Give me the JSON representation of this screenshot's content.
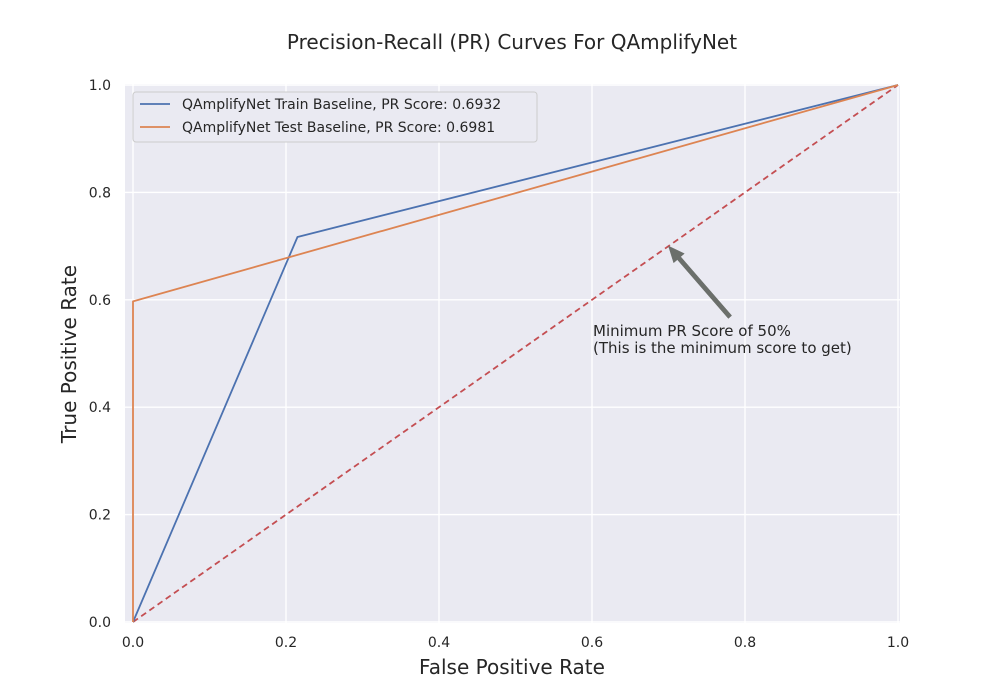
{
  "chart_data": {
    "type": "line",
    "title": "Precision-Recall (PR) Curves For QAmplifyNet",
    "xlabel": "False Positive Rate",
    "ylabel": "True Positive Rate",
    "xlim": [
      0.0,
      1.0
    ],
    "ylim": [
      0.0,
      1.0
    ],
    "xticks": [
      "0.0",
      "0.2",
      "0.4",
      "0.6",
      "0.8",
      "1.0"
    ],
    "yticks": [
      "0.0",
      "0.2",
      "0.4",
      "0.6",
      "0.8",
      "1.0"
    ],
    "grid": true,
    "legend_position": "top-left",
    "series": [
      {
        "name": "QAmplifyNet Train Baseline, PR Score: 0.6932",
        "color": "#4c72b0",
        "style": "solid",
        "x": [
          0.0,
          0.215,
          1.0
        ],
        "y": [
          0.0,
          0.717,
          1.0
        ]
      },
      {
        "name": "QAmplifyNet Test Baseline, PR Score: 0.6981",
        "color": "#dd8452",
        "style": "solid",
        "x": [
          0.0,
          0.0,
          1.0
        ],
        "y": [
          0.0,
          0.597,
          1.0
        ]
      }
    ],
    "reference_line": {
      "color": "#c44e52",
      "style": "dashed",
      "x": [
        0.0,
        1.0
      ],
      "y": [
        0.0,
        1.0
      ]
    },
    "annotation": {
      "lines": [
        "Minimum PR Score of 50%",
        "(This is the minimum score to get)"
      ],
      "arrow_tip": [
        0.7,
        0.7
      ],
      "arrow_color": "#6b6f6b"
    }
  }
}
